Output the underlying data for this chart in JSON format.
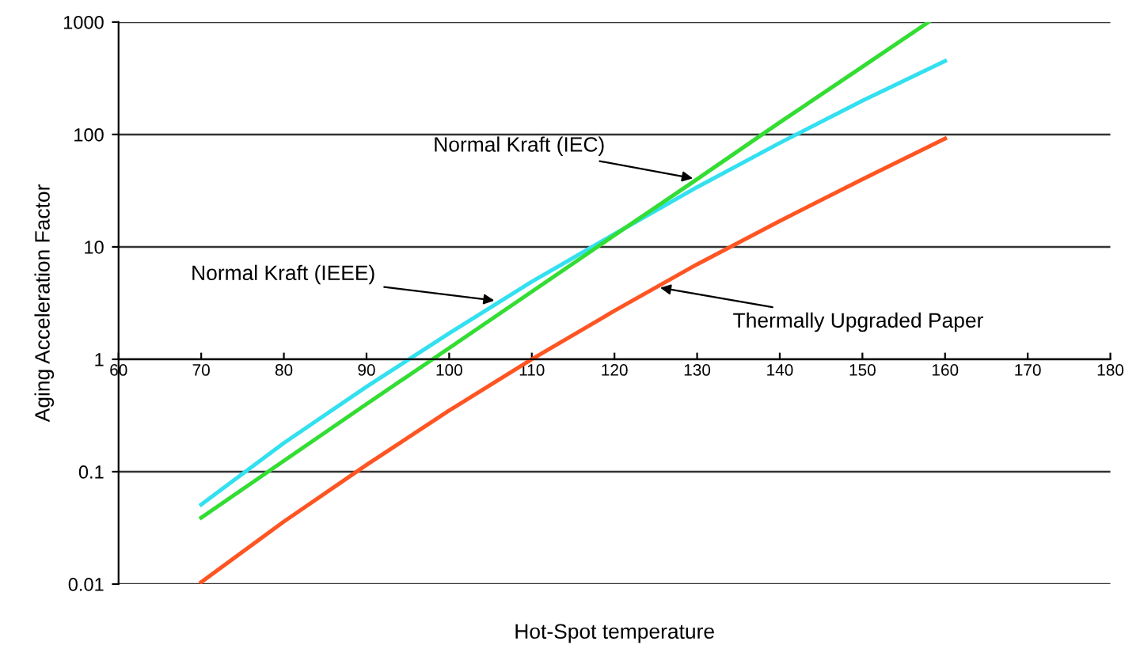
{
  "chart_data": {
    "type": "line",
    "xlabel": "Hot-Spot temperature",
    "ylabel": "Aging Acceleration Factor",
    "x": [
      70,
      80,
      90,
      100,
      110,
      120,
      130,
      140,
      150,
      160
    ],
    "series": [
      {
        "color": "#33e0f0",
        "values": [
          0.051,
          0.18,
          0.57,
          1.7,
          4.9,
          13,
          34,
          84,
          200,
          450
        ]
      },
      {
        "color": "#33dd33",
        "x": [
          70,
          80,
          90,
          100,
          110,
          120,
          130,
          140,
          150,
          158
        ],
        "values": [
          0.039,
          0.125,
          0.4,
          1.26,
          4,
          12.7,
          40,
          128,
          400,
          1000
        ]
      },
      {
        "color": "#ff5522",
        "values": [
          0.0104,
          0.036,
          0.115,
          0.35,
          1,
          2.7,
          7,
          17,
          40,
          92
        ]
      }
    ],
    "annotations": [
      {
        "text": "Normal Kraft (IEC)",
        "x": 130,
        "y": 40
      },
      {
        "text": "Normal Kraft (IEEE)",
        "x": 106,
        "y": 3.3
      },
      {
        "text": "Thermally Upgraded Paper",
        "x": 125,
        "y": 4.4
      }
    ],
    "log": "y",
    "xlim": [
      60,
      180
    ],
    "xticks": [
      60,
      70,
      80,
      90,
      100,
      110,
      120,
      130,
      140,
      150,
      160,
      170,
      180
    ],
    "ylim": [
      0.01,
      1000
    ],
    "yticks": [
      0.01,
      0.1,
      1,
      10,
      100,
      1000
    ],
    "grid": "y",
    "legend": false,
    "marker": "none",
    "line_style": "solid"
  }
}
